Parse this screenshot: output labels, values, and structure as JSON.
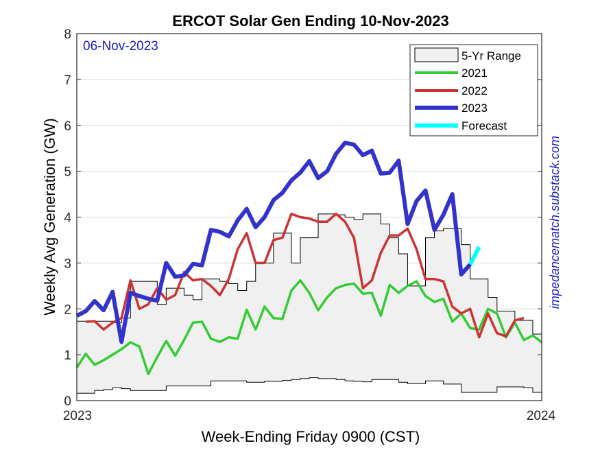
{
  "chart_data": {
    "type": "line",
    "title": "ERCOT Solar Gen Ending 10-Nov-2023",
    "xlabel": "Week-Ending Friday 0900 (CST)",
    "ylabel": "Weekly Avg Generation (GW)",
    "annotation_date": "06-Nov-2023",
    "watermark": "impedancematch.substack.com",
    "x_ticks": [
      "2023",
      "2024"
    ],
    "y_ticks": [
      0,
      1,
      2,
      3,
      4,
      5,
      6,
      7,
      8
    ],
    "ylim": [
      0,
      8
    ],
    "xlim_weeks": [
      0,
      52
    ],
    "grid": "horizontal",
    "legend_position": "upper right",
    "range_5yr": {
      "name": "5-Yr Range",
      "fill": "#f0f0f0",
      "upper": [
        1.73,
        1.73,
        1.73,
        1.73,
        1.7,
        1.8,
        2.6,
        2.6,
        2.6,
        2.1,
        2.45,
        2.45,
        2.3,
        2.2,
        2.65,
        2.65,
        2.6,
        2.55,
        2.4,
        2.6,
        3.0,
        3.0,
        3.65,
        3.65,
        3.0,
        3.55,
        3.55,
        4.07,
        4.07,
        4.05,
        4.0,
        3.95,
        4.07,
        4.07,
        3.85,
        3.55,
        3.2,
        2.5,
        2.5,
        3.55,
        3.7,
        3.75,
        3.75,
        3.4,
        2.65,
        2.65,
        2.25,
        1.95,
        1.95,
        1.75,
        1.75,
        1.45,
        1.85
      ],
      "lower": [
        0.16,
        0.16,
        0.22,
        0.24,
        0.28,
        0.26,
        0.22,
        0.22,
        0.22,
        0.22,
        0.32,
        0.32,
        0.32,
        0.32,
        0.32,
        0.43,
        0.43,
        0.43,
        0.43,
        0.4,
        0.4,
        0.42,
        0.42,
        0.44,
        0.46,
        0.48,
        0.5,
        0.48,
        0.48,
        0.46,
        0.43,
        0.42,
        0.41,
        0.46,
        0.46,
        0.46,
        0.4,
        0.37,
        0.37,
        0.43,
        0.43,
        0.36,
        0.36,
        0.18,
        0.18,
        0.18,
        0.18,
        0.3,
        0.3,
        0.3,
        0.28,
        0.18,
        0.3
      ]
    },
    "series": [
      {
        "name": "2021",
        "color": "#33cc33",
        "values": [
          0.72,
          1.02,
          0.78,
          0.88,
          1.0,
          1.12,
          1.27,
          1.18,
          0.58,
          0.95,
          1.3,
          0.98,
          1.32,
          1.7,
          1.72,
          1.35,
          1.28,
          1.38,
          1.35,
          1.98,
          1.55,
          2.05,
          1.8,
          1.78,
          2.4,
          2.62,
          2.35,
          1.97,
          2.25,
          2.45,
          2.52,
          2.55,
          2.33,
          2.35,
          1.85,
          2.52,
          2.35,
          2.5,
          2.6,
          2.28,
          2.15,
          2.22,
          1.72,
          1.9,
          1.58,
          1.55,
          2.0,
          1.9,
          1.38,
          1.7,
          1.32,
          1.42,
          1.27
        ]
      },
      {
        "name": "2022",
        "color": "#cc3333",
        "values": [
          null,
          1.72,
          1.73,
          1.55,
          1.7,
          1.8,
          2.62,
          2.0,
          2.1,
          2.45,
          2.2,
          2.3,
          2.8,
          2.62,
          2.65,
          2.5,
          2.3,
          2.65,
          3.3,
          3.65,
          3.0,
          3.0,
          3.5,
          3.55,
          4.07,
          4.0,
          3.97,
          3.9,
          3.9,
          4.07,
          3.9,
          3.55,
          2.45,
          2.62,
          3.22,
          3.6,
          3.6,
          3.75,
          3.3,
          2.65,
          2.65,
          2.6,
          2.05,
          1.9,
          2.0,
          1.38,
          1.9,
          1.47,
          1.4,
          1.75,
          1.8
        ]
      },
      {
        "name": "2023",
        "color": "#3333cc",
        "values": [
          1.85,
          1.95,
          2.17,
          1.97,
          2.37,
          1.28,
          2.35,
          2.28,
          2.22,
          2.18,
          3.0,
          2.7,
          2.73,
          2.98,
          2.95,
          3.72,
          3.68,
          3.58,
          3.93,
          4.18,
          3.78,
          4.0,
          4.37,
          4.53,
          4.8,
          4.97,
          5.22,
          4.85,
          5.0,
          5.38,
          5.62,
          5.58,
          5.35,
          5.45,
          4.95,
          4.97,
          5.23,
          3.85,
          4.35,
          4.58,
          3.72,
          4.05,
          4.5,
          2.75,
          2.97
        ]
      },
      {
        "name": "Forecast",
        "color": "#00ffff",
        "start_week": 44,
        "values": [
          2.97,
          3.35
        ]
      }
    ]
  }
}
